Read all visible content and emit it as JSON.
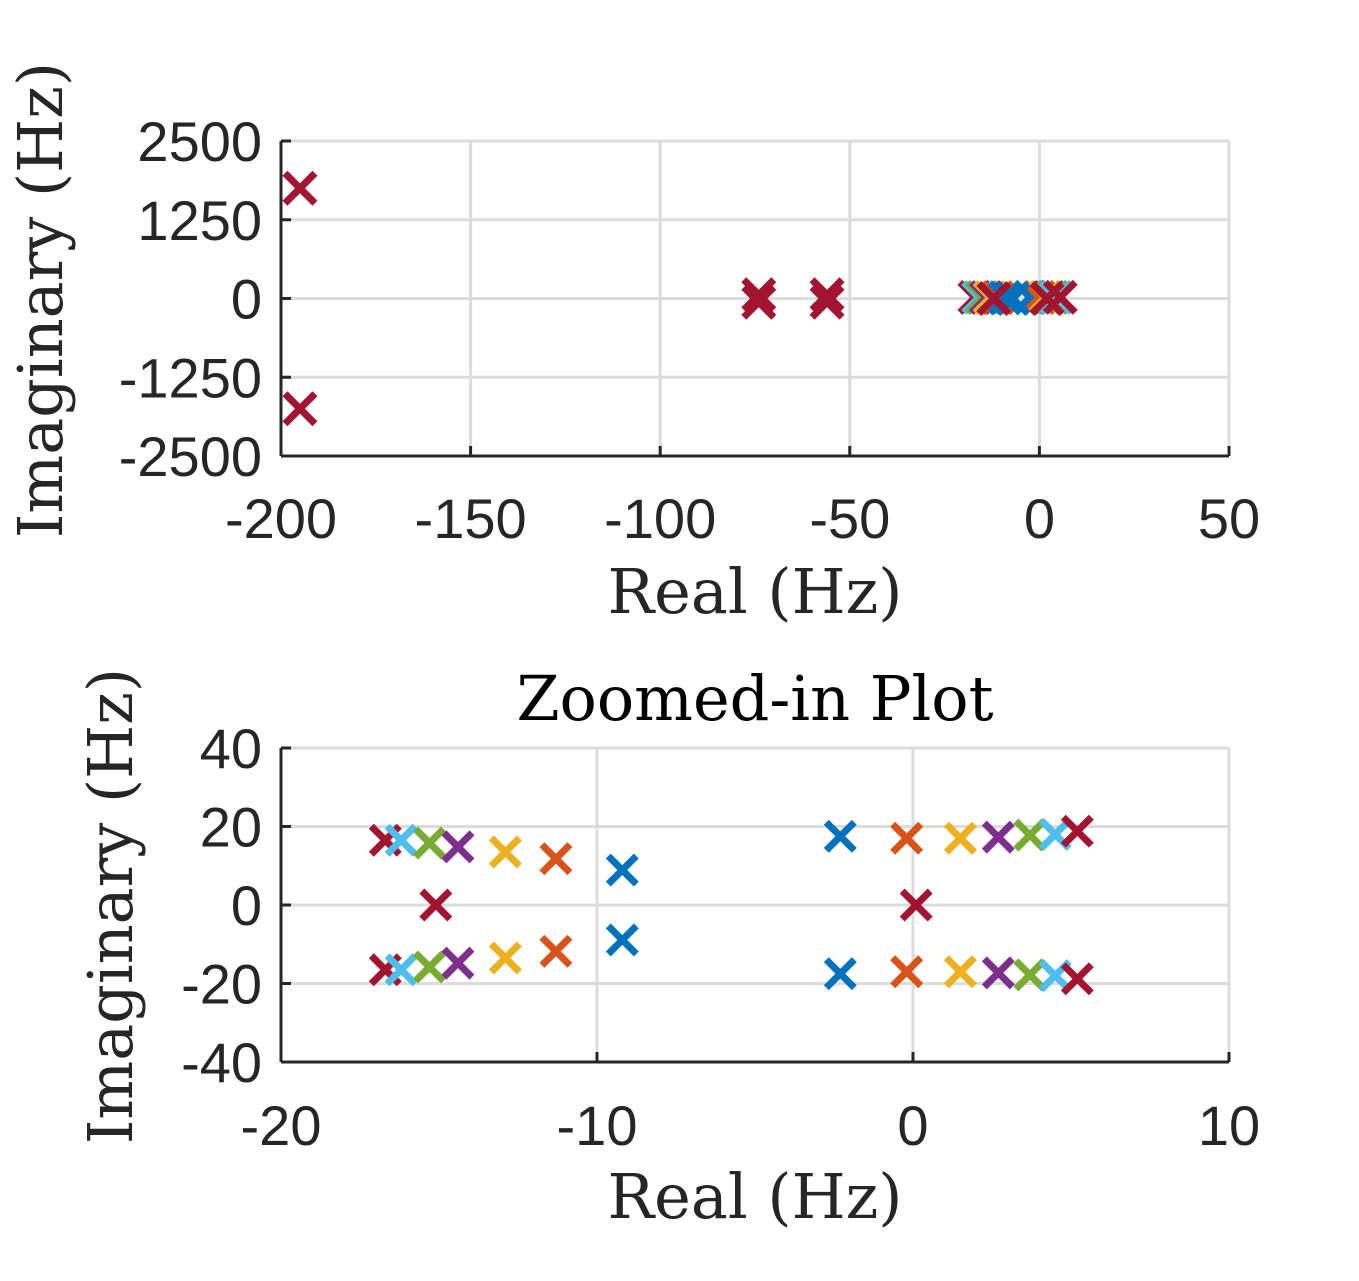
{
  "chart_data": [
    {
      "type": "scatter",
      "title": "",
      "xlabel": "Real (Hz)",
      "ylabel": "Imaginary (Hz)",
      "xlim": [
        -200,
        50
      ],
      "ylim": [
        -2500,
        2500
      ],
      "xticks": [
        "-200",
        "-150",
        "-100",
        "-50",
        "0",
        "50"
      ],
      "yticks": [
        "2500",
        "1250",
        "0",
        "-1250",
        "-2500"
      ],
      "xtick_values": [
        -200,
        -150,
        -100,
        -50,
        0,
        50
      ],
      "ytick_values": [
        2500,
        1250,
        0,
        -1250,
        -2500
      ],
      "grid": true,
      "marker": "x",
      "points": [
        {
          "x": -195,
          "y": 1750,
          "color": "#A2142F"
        },
        {
          "x": -195,
          "y": -1750,
          "color": "#A2142F"
        },
        {
          "x": -74,
          "y": 60,
          "color": "#A2142F"
        },
        {
          "x": -74,
          "y": -60,
          "color": "#A2142F"
        },
        {
          "x": -56,
          "y": 60,
          "color": "#A2142F"
        },
        {
          "x": -56,
          "y": -60,
          "color": "#A2142F"
        },
        {
          "x": -17,
          "y": 17,
          "color": "#A2142F"
        },
        {
          "x": -16,
          "y": 17,
          "color": "#4DBEEE"
        },
        {
          "x": -15,
          "y": 16,
          "color": "#77AC30"
        },
        {
          "x": -14,
          "y": 15,
          "color": "#7E2F8E"
        },
        {
          "x": -13,
          "y": 14,
          "color": "#EDB120"
        },
        {
          "x": -11,
          "y": 12,
          "color": "#D95319"
        },
        {
          "x": -9,
          "y": 9,
          "color": "#0072BD"
        },
        {
          "x": -2.5,
          "y": 18,
          "color": "#0072BD"
        },
        {
          "x": 0,
          "y": 17,
          "color": "#D95319"
        },
        {
          "x": 1.5,
          "y": 17,
          "color": "#EDB120"
        },
        {
          "x": 2.5,
          "y": 17,
          "color": "#7E2F8E"
        },
        {
          "x": 3.5,
          "y": 18,
          "color": "#77AC30"
        },
        {
          "x": 4.5,
          "y": 18,
          "color": "#4DBEEE"
        },
        {
          "x": 5.5,
          "y": 19,
          "color": "#A2142F"
        },
        {
          "x": -7,
          "y": 0,
          "color": "#0072BD"
        },
        {
          "x": -12,
          "y": 0,
          "color": "#A2142F"
        },
        {
          "x": 2,
          "y": 0,
          "color": "#A2142F"
        }
      ]
    },
    {
      "type": "scatter",
      "title": "Zoomed-in Plot",
      "xlabel": "Real (Hz)",
      "ylabel": "Imaginary (Hz)",
      "xlim": [
        -20,
        10
      ],
      "ylim": [
        -40,
        40
      ],
      "xticks": [
        "-20",
        "-10",
        "0",
        "10"
      ],
      "yticks": [
        "40",
        "20",
        "0",
        "-20",
        "-40"
      ],
      "xtick_values": [
        -20,
        -10,
        0,
        10
      ],
      "ytick_values": [
        40,
        20,
        0,
        -20,
        -40
      ],
      "grid": true,
      "marker": "x",
      "points": [
        {
          "x": -16.7,
          "y": 16.5,
          "color": "#A2142F"
        },
        {
          "x": -16.2,
          "y": 16.5,
          "color": "#4DBEEE"
        },
        {
          "x": -15.3,
          "y": 15.8,
          "color": "#77AC30"
        },
        {
          "x": -14.4,
          "y": 14.8,
          "color": "#7E2F8E"
        },
        {
          "x": -12.9,
          "y": 13.5,
          "color": "#EDB120"
        },
        {
          "x": -11.3,
          "y": 11.8,
          "color": "#D95319"
        },
        {
          "x": -9.2,
          "y": 8.9,
          "color": "#0072BD"
        },
        {
          "x": -15.1,
          "y": 0,
          "color": "#A2142F"
        },
        {
          "x": -16.7,
          "y": -16.5,
          "color": "#A2142F"
        },
        {
          "x": -16.2,
          "y": -16.5,
          "color": "#4DBEEE"
        },
        {
          "x": -15.3,
          "y": -15.8,
          "color": "#77AC30"
        },
        {
          "x": -14.4,
          "y": -14.8,
          "color": "#7E2F8E"
        },
        {
          "x": -12.9,
          "y": -13.5,
          "color": "#EDB120"
        },
        {
          "x": -11.3,
          "y": -11.8,
          "color": "#D95319"
        },
        {
          "x": -9.2,
          "y": -8.9,
          "color": "#0072BD"
        },
        {
          "x": -2.3,
          "y": 17.5,
          "color": "#0072BD"
        },
        {
          "x": -0.2,
          "y": 17.0,
          "color": "#D95319"
        },
        {
          "x": 1.5,
          "y": 17.0,
          "color": "#EDB120"
        },
        {
          "x": 2.7,
          "y": 17.3,
          "color": "#7E2F8E"
        },
        {
          "x": 3.7,
          "y": 17.8,
          "color": "#77AC30"
        },
        {
          "x": 4.5,
          "y": 18.0,
          "color": "#4DBEEE"
        },
        {
          "x": 5.2,
          "y": 18.8,
          "color": "#A2142F"
        },
        {
          "x": 0.1,
          "y": 0,
          "color": "#A2142F"
        },
        {
          "x": -2.3,
          "y": -17.5,
          "color": "#0072BD"
        },
        {
          "x": -0.2,
          "y": -17.0,
          "color": "#D95319"
        },
        {
          "x": 1.5,
          "y": -17.0,
          "color": "#EDB120"
        },
        {
          "x": 2.7,
          "y": -17.3,
          "color": "#7E2F8E"
        },
        {
          "x": 3.7,
          "y": -17.8,
          "color": "#77AC30"
        },
        {
          "x": 4.5,
          "y": -18.0,
          "color": "#4DBEEE"
        },
        {
          "x": 5.2,
          "y": -18.8,
          "color": "#A2142F"
        }
      ]
    }
  ]
}
